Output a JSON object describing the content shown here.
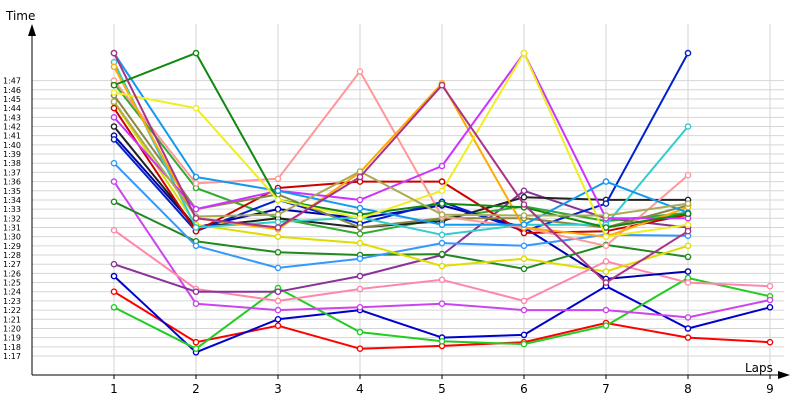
{
  "chart_data": {
    "type": "line",
    "xlabel": "Laps",
    "ylabel": "Time",
    "x_ticks": [
      "1",
      "2",
      "3",
      "4",
      "5",
      "6",
      "7",
      "8",
      "9"
    ],
    "y_ticks": [
      "1:17",
      "1:18",
      "1:19",
      "1:20",
      "1:21",
      "1:22",
      "1:23",
      "1:24",
      "1:25",
      "1:26",
      "1:27",
      "1:28",
      "1:29",
      "1:30",
      "1:31",
      "1:32",
      "1:33",
      "1:34",
      "1:35",
      "1:36",
      "1:37",
      "1:38",
      "1:39",
      "1:40",
      "1:41",
      "1:42",
      "1:43",
      "1:44",
      "1:45",
      "1:46",
      "1:47"
    ],
    "ylim_seconds": [
      76,
      110
    ],
    "xlim": [
      0,
      9
    ],
    "grid": true,
    "series": [
      {
        "color": "#ff0000",
        "points": [
          [
            1,
            84
          ],
          [
            2,
            78.5
          ],
          [
            3,
            80.3
          ],
          [
            4,
            77.8
          ],
          [
            5,
            78.1
          ],
          [
            6,
            78.5
          ],
          [
            7,
            80.6
          ],
          [
            8,
            79
          ],
          [
            9,
            78.5
          ]
        ]
      },
      {
        "color": "#0000cc",
        "points": [
          [
            1,
            85.7
          ],
          [
            2,
            77.4
          ],
          [
            3,
            81
          ],
          [
            4,
            82
          ],
          [
            5,
            79
          ],
          [
            6,
            79.3
          ],
          [
            7,
            84.6
          ],
          [
            8,
            80
          ],
          [
            9,
            82.3
          ]
        ]
      },
      {
        "color": "#22cc22",
        "points": [
          [
            1,
            82.3
          ],
          [
            2,
            77.8
          ],
          [
            3,
            84.4
          ],
          [
            4,
            79.6
          ],
          [
            5,
            78.6
          ],
          [
            6,
            78.3
          ],
          [
            7,
            80.3
          ],
          [
            8,
            85.5
          ],
          [
            9,
            83.5
          ]
        ]
      },
      {
        "color": "#cc44ee",
        "points": [
          [
            1,
            96
          ],
          [
            2,
            82.7
          ],
          [
            3,
            82
          ],
          [
            4,
            82.3
          ],
          [
            5,
            82.7
          ],
          [
            6,
            82
          ],
          [
            7,
            82
          ],
          [
            8,
            81.2
          ],
          [
            9,
            83.1
          ]
        ]
      },
      {
        "color": "#ff88aa",
        "points": [
          [
            1,
            90.7
          ],
          [
            2,
            84.3
          ],
          [
            3,
            83
          ],
          [
            4,
            84.3
          ],
          [
            5,
            85.3
          ],
          [
            6,
            83
          ],
          [
            7,
            87.3
          ],
          [
            8,
            85
          ],
          [
            9,
            84.6
          ]
        ]
      },
      {
        "color": "#883399",
        "points": [
          [
            1,
            87
          ],
          [
            2,
            84
          ],
          [
            3,
            84
          ],
          [
            4,
            85.7
          ],
          [
            5,
            88
          ],
          [
            6,
            95
          ],
          [
            7,
            92
          ],
          [
            8,
            91
          ]
        ]
      },
      {
        "color": "#0000aa",
        "points": [
          [
            1,
            101
          ],
          [
            2,
            91
          ],
          [
            3,
            93
          ],
          [
            4,
            92
          ],
          [
            5,
            93.4
          ],
          [
            6,
            91
          ],
          [
            7,
            85.4
          ],
          [
            8,
            86.2
          ]
        ]
      },
      {
        "color": "#228822",
        "points": [
          [
            1,
            93.8
          ],
          [
            2,
            89.5
          ],
          [
            3,
            88.3
          ],
          [
            4,
            88
          ],
          [
            5,
            88.1
          ],
          [
            6,
            86.5
          ],
          [
            7,
            89.1
          ],
          [
            8,
            87.8
          ]
        ]
      },
      {
        "color": "#3399ff",
        "points": [
          [
            1,
            98
          ],
          [
            2,
            89
          ],
          [
            3,
            86.6
          ],
          [
            4,
            87.6
          ],
          [
            5,
            89.3
          ],
          [
            6,
            89
          ],
          [
            7,
            90.2
          ],
          [
            8,
            90.1
          ]
        ]
      },
      {
        "color": "#dddd00",
        "points": [
          [
            1,
            104.6
          ],
          [
            2,
            91.3
          ],
          [
            3,
            90
          ],
          [
            4,
            89.3
          ],
          [
            5,
            86.8
          ],
          [
            6,
            87.6
          ],
          [
            7,
            86.2
          ],
          [
            8,
            89
          ]
        ]
      },
      {
        "color": "#33aa33",
        "points": [
          [
            1,
            106.7
          ],
          [
            2,
            95.3
          ],
          [
            3,
            92
          ],
          [
            4,
            90.3
          ],
          [
            5,
            92
          ],
          [
            6,
            93.3
          ],
          [
            7,
            91.7
          ],
          [
            8,
            92.6
          ]
        ]
      },
      {
        "color": "#222222",
        "points": [
          [
            1,
            102
          ],
          [
            2,
            91
          ],
          [
            3,
            92
          ],
          [
            4,
            91
          ],
          [
            5,
            91.7
          ],
          [
            6,
            94.3
          ],
          [
            7,
            94
          ],
          [
            8,
            94
          ]
        ]
      },
      {
        "color": "#0022cc",
        "points": [
          [
            1,
            100.6
          ],
          [
            2,
            90.6
          ],
          [
            3,
            94
          ],
          [
            4,
            91.4
          ],
          [
            5,
            93.8
          ],
          [
            6,
            90.6
          ],
          [
            7,
            93.6
          ],
          [
            8,
            110
          ]
        ]
      },
      {
        "color": "#cc0000",
        "points": [
          [
            1,
            104
          ],
          [
            2,
            90.6
          ],
          [
            3,
            95.3
          ],
          [
            4,
            96
          ],
          [
            5,
            96
          ],
          [
            6,
            90.4
          ],
          [
            7,
            90.6
          ],
          [
            8,
            92.4
          ]
        ]
      },
      {
        "color": "#888844",
        "points": [
          [
            1,
            105.4
          ],
          [
            2,
            93
          ],
          [
            3,
            94.6
          ],
          [
            4,
            91
          ],
          [
            5,
            92
          ],
          [
            6,
            92
          ],
          [
            7,
            91
          ],
          [
            8,
            93.4
          ]
        ]
      },
      {
        "color": "#33cccc",
        "points": [
          [
            1,
            109
          ],
          [
            2,
            91
          ],
          [
            3,
            91.6
          ],
          [
            4,
            92.1
          ],
          [
            5,
            90.2
          ],
          [
            6,
            91.3
          ],
          [
            7,
            91.3
          ],
          [
            8,
            102
          ]
        ]
      },
      {
        "color": "#ff9999",
        "points": [
          [
            1,
            107
          ],
          [
            2,
            95.8
          ],
          [
            3,
            96.3
          ],
          [
            4,
            108
          ],
          [
            5,
            92.2
          ],
          [
            6,
            91
          ],
          [
            7,
            89
          ],
          [
            8,
            96.7
          ]
        ]
      },
      {
        "color": "#ffaa00",
        "points": [
          [
            1,
            108.5
          ],
          [
            2,
            92
          ],
          [
            3,
            90.8
          ],
          [
            4,
            97
          ],
          [
            5,
            106.7
          ],
          [
            6,
            91
          ],
          [
            7,
            90
          ],
          [
            8,
            93.2
          ]
        ]
      },
      {
        "color": "#cc33ff",
        "points": [
          [
            1,
            103
          ],
          [
            2,
            93
          ],
          [
            3,
            95
          ],
          [
            4,
            94
          ],
          [
            5,
            97.7
          ],
          [
            6,
            110
          ],
          [
            7,
            92
          ],
          [
            8,
            92
          ]
        ]
      },
      {
        "color": "#1199ee",
        "points": [
          [
            1,
            110
          ],
          [
            2,
            96.5
          ],
          [
            3,
            95
          ],
          [
            4,
            93.1
          ],
          [
            5,
            91.3
          ],
          [
            6,
            91.3
          ],
          [
            7,
            96
          ],
          [
            8,
            92.6
          ]
        ]
      },
      {
        "color": "#118811",
        "points": [
          [
            1,
            106.5
          ],
          [
            2,
            110
          ],
          [
            3,
            94
          ],
          [
            4,
            92.4
          ],
          [
            5,
            93.6
          ],
          [
            6,
            93.2
          ],
          [
            7,
            91
          ],
          [
            8,
            92.5
          ]
        ]
      },
      {
        "color": "#eeee22",
        "points": [
          [
            1,
            105.7
          ],
          [
            2,
            104
          ],
          [
            3,
            94
          ],
          [
            4,
            92
          ],
          [
            5,
            95
          ],
          [
            6,
            110
          ],
          [
            7,
            90
          ],
          [
            8,
            91.3
          ]
        ]
      },
      {
        "color": "#aaaa55",
        "points": [
          [
            1,
            104.7
          ],
          [
            2,
            92.2
          ],
          [
            3,
            92.4
          ],
          [
            4,
            97.1
          ],
          [
            5,
            92.4
          ],
          [
            6,
            92.3
          ],
          [
            7,
            92.3
          ],
          [
            8,
            93.6
          ]
        ]
      },
      {
        "color": "#aa3388",
        "points": [
          [
            1,
            110
          ],
          [
            2,
            92
          ],
          [
            3,
            91
          ],
          [
            4,
            96.5
          ],
          [
            5,
            106.5
          ],
          [
            6,
            93.5
          ],
          [
            7,
            85
          ],
          [
            8,
            90.6
          ]
        ]
      }
    ]
  }
}
